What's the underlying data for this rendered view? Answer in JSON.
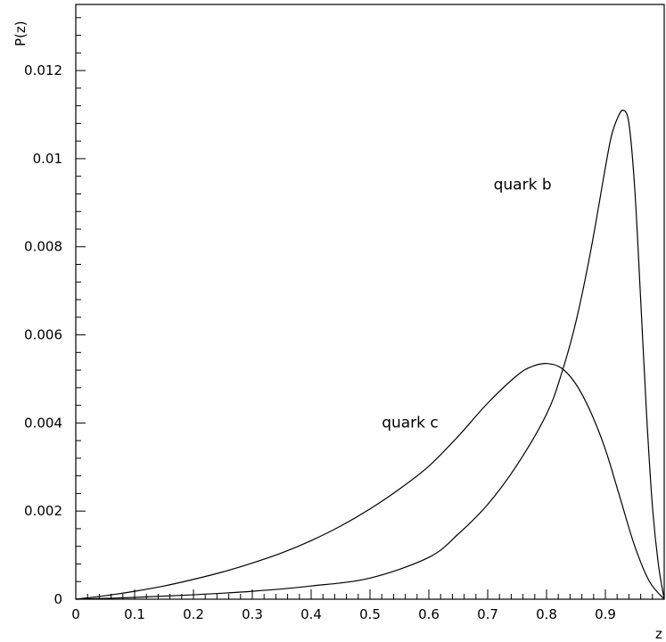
{
  "chart_data": {
    "type": "line",
    "xlabel": "z",
    "ylabel": "P(z)",
    "xlim": [
      0,
      1
    ],
    "ylim": [
      0,
      0.0135
    ],
    "x_ticks": [
      "0",
      "0.1",
      "0.2",
      "0.3",
      "0.4",
      "0.5",
      "0.6",
      "0.7",
      "0.8",
      "0.9"
    ],
    "y_ticks": [
      "0",
      "0.002",
      "0.004",
      "0.006",
      "0.008",
      "0.01",
      "0.012"
    ],
    "grid": false,
    "series": [
      {
        "name": "quark c",
        "x": [
          0,
          0.05,
          0.1,
          0.15,
          0.2,
          0.25,
          0.3,
          0.35,
          0.4,
          0.45,
          0.5,
          0.55,
          0.6,
          0.65,
          0.7,
          0.75,
          0.775,
          0.8,
          0.825,
          0.85,
          0.875,
          0.9,
          0.925,
          0.95,
          0.975,
          1.0
        ],
        "values": [
          0,
          8e-05,
          0.00018,
          0.0003,
          0.00045,
          0.00062,
          0.00082,
          0.00105,
          0.00133,
          0.00166,
          0.00205,
          0.0025,
          0.00302,
          0.0037,
          0.00445,
          0.00508,
          0.00528,
          0.00535,
          0.00525,
          0.00488,
          0.00425,
          0.0034,
          0.0023,
          0.0012,
          0.0004,
          0
        ]
      },
      {
        "name": "quark b",
        "x": [
          0,
          0.1,
          0.2,
          0.3,
          0.4,
          0.5,
          0.6,
          0.65,
          0.7,
          0.75,
          0.8,
          0.825,
          0.85,
          0.875,
          0.9,
          0.91,
          0.92,
          0.93,
          0.94,
          0.95,
          0.96,
          0.97,
          0.98,
          0.99,
          1.0
        ],
        "values": [
          0,
          4e-05,
          0.0001,
          0.00018,
          0.0003,
          0.00048,
          0.00095,
          0.00148,
          0.00215,
          0.00305,
          0.0042,
          0.0051,
          0.0063,
          0.0079,
          0.0098,
          0.0105,
          0.0109,
          0.0111,
          0.0108,
          0.0093,
          0.0068,
          0.0042,
          0.0021,
          0.0008,
          0
        ]
      }
    ],
    "annotations": [
      {
        "text": "quark b",
        "x": 0.71,
        "y": 0.0093
      },
      {
        "text": "quark c",
        "x": 0.52,
        "y": 0.0039
      }
    ]
  }
}
